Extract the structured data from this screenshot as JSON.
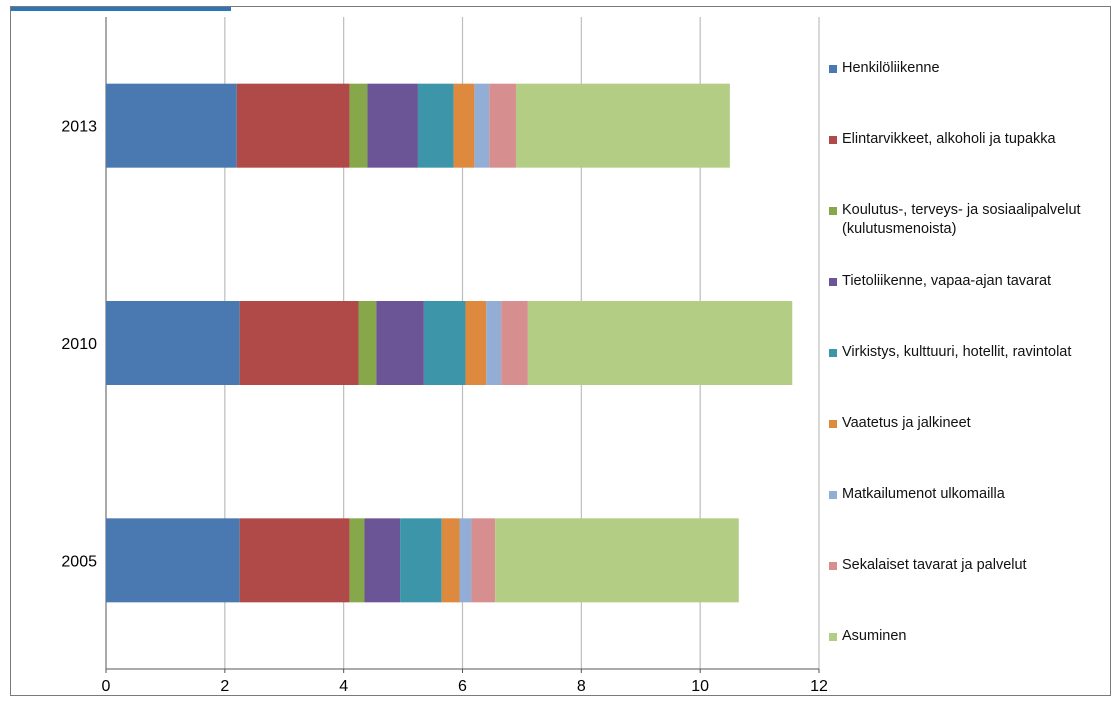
{
  "chart_data": {
    "type": "bar",
    "orientation": "horizontal",
    "stacked": true,
    "title": "",
    "xlabel": "",
    "ylabel": "",
    "xlim": [
      0,
      12
    ],
    "x_ticks": [
      "0",
      "2",
      "4",
      "6",
      "8",
      "10",
      "12"
    ],
    "categories": [
      "2013",
      "2010",
      "2005"
    ],
    "grid": "vertical",
    "legend_position": "right",
    "series": [
      {
        "name": "Henkilöliikenne",
        "color": "#4a78b0",
        "values": [
          2.2,
          2.25,
          2.25
        ]
      },
      {
        "name": "Elintarvikkeet, alkoholi ja tupakka",
        "color": "#b04a48",
        "values": [
          1.9,
          2.0,
          1.85
        ]
      },
      {
        "name": "Koulutus-, terveys- ja sosiaalipalvelut (kulutusmenoista)",
        "color": "#86a84b",
        "values": [
          0.3,
          0.3,
          0.25
        ]
      },
      {
        "name": "Tietoliikenne, vapaa-ajan tavarat",
        "color": "#6b5596",
        "values": [
          0.85,
          0.8,
          0.6
        ]
      },
      {
        "name": "Virkistys, kulttuuri, hotellit, ravintolat",
        "color": "#3d95aa",
        "values": [
          0.6,
          0.7,
          0.7
        ]
      },
      {
        "name": "Vaatetus ja jalkineet",
        "color": "#dd8a3f",
        "values": [
          0.35,
          0.35,
          0.3
        ]
      },
      {
        "name": "Matkailumenot ulkomailla",
        "color": "#93aed6",
        "values": [
          0.25,
          0.25,
          0.2
        ]
      },
      {
        "name": "Sekalaiset tavarat ja palvelut",
        "color": "#d68f8e",
        "values": [
          0.45,
          0.45,
          0.4
        ]
      },
      {
        "name": "Asuminen",
        "color": "#b3ce84",
        "values": [
          3.6,
          4.45,
          4.1
        ]
      }
    ]
  }
}
